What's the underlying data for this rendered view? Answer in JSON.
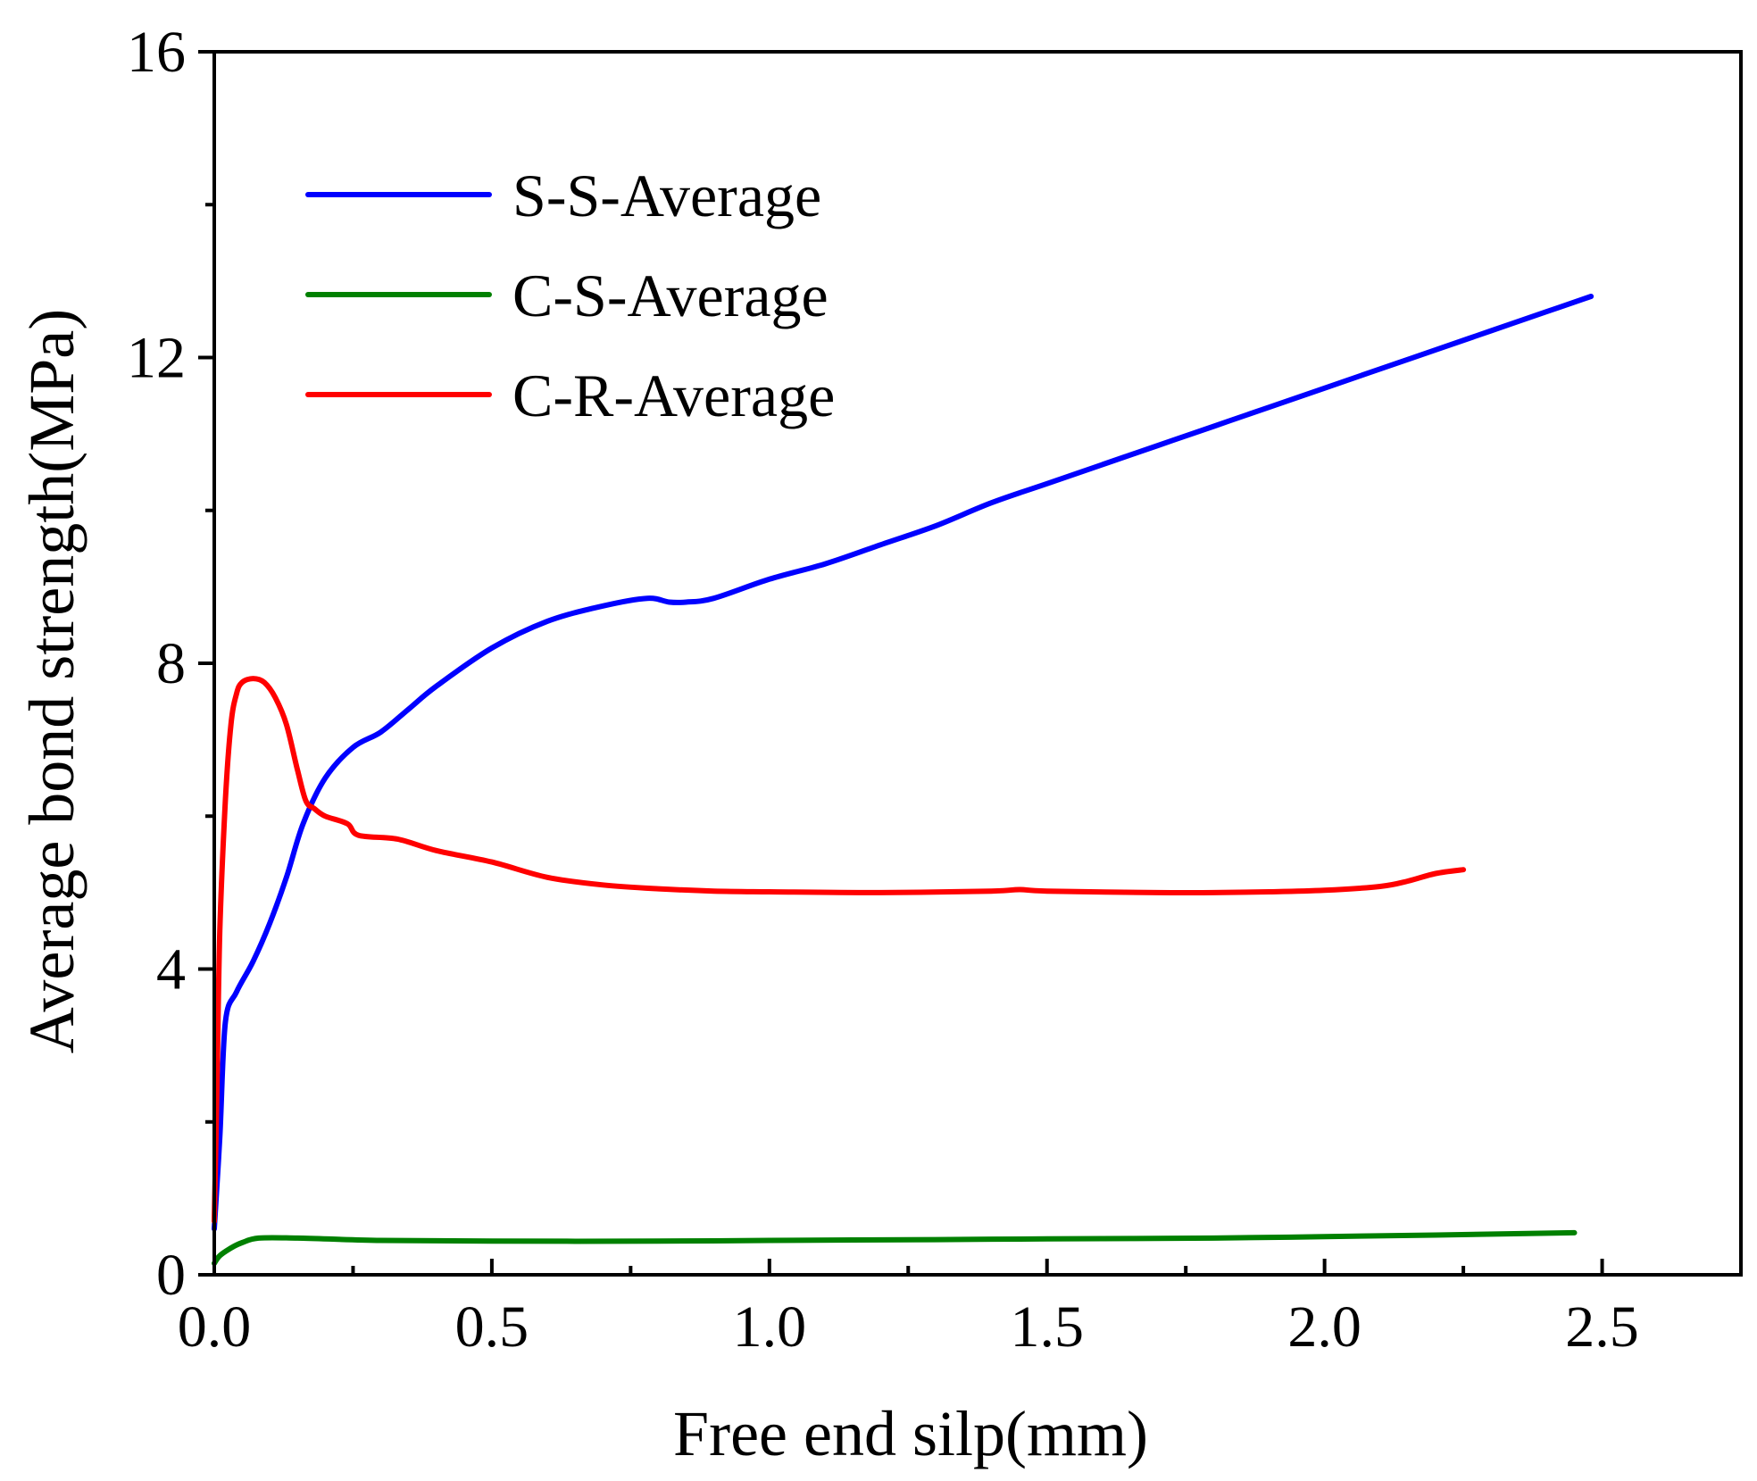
{
  "chart_data": {
    "type": "line",
    "title": "",
    "xlabel": "Free end silp(mm)",
    "ylabel": "Average bond strength(MPa)",
    "xlim": [
      0,
      2.75
    ],
    "ylim": [
      0,
      16
    ],
    "x_ticks": [
      0.0,
      0.5,
      1.0,
      1.5,
      2.0,
      2.5
    ],
    "x_tick_labels": [
      "0.0",
      "0.5",
      "1.0",
      "1.5",
      "2.0",
      "2.5"
    ],
    "y_ticks": [
      0,
      4,
      8,
      12,
      16
    ],
    "y_tick_labels": [
      "0",
      "4",
      "8",
      "12",
      "16"
    ],
    "grid": false,
    "legend_position": "top-left",
    "series": [
      {
        "name": "S-S-Average",
        "color": "#0000ff",
        "x": [
          0.0,
          0.01,
          0.02,
          0.04,
          0.07,
          0.1,
          0.13,
          0.16,
          0.2,
          0.25,
          0.3,
          0.35,
          0.4,
          0.5,
          0.6,
          0.7,
          0.78,
          0.82,
          0.85,
          0.9,
          1.0,
          1.1,
          1.2,
          1.3,
          1.4,
          1.5,
          1.6,
          1.7,
          1.8,
          1.9,
          2.0,
          2.1,
          2.2,
          2.3,
          2.4,
          2.48
        ],
        "values": [
          0.6,
          1.8,
          3.3,
          3.7,
          4.1,
          4.6,
          5.2,
          5.9,
          6.5,
          6.9,
          7.1,
          7.4,
          7.7,
          8.2,
          8.55,
          8.75,
          8.85,
          8.8,
          8.8,
          8.85,
          9.1,
          9.3,
          9.55,
          9.8,
          10.1,
          10.35,
          10.6,
          10.85,
          11.1,
          11.35,
          11.6,
          11.85,
          12.1,
          12.35,
          12.6,
          12.8
        ]
      },
      {
        "name": "C-S-Average",
        "color": "#008000",
        "x": [
          0.0,
          0.01,
          0.03,
          0.05,
          0.08,
          0.15,
          0.3,
          0.5,
          0.8,
          1.0,
          1.3,
          1.5,
          1.8,
          2.0,
          2.2,
          2.45
        ],
        "values": [
          0.15,
          0.25,
          0.35,
          0.42,
          0.48,
          0.48,
          0.45,
          0.44,
          0.44,
          0.45,
          0.46,
          0.47,
          0.48,
          0.5,
          0.52,
          0.55
        ]
      },
      {
        "name": "C-R-Average",
        "color": "#ff0000",
        "x": [
          0.0,
          0.005,
          0.01,
          0.02,
          0.03,
          0.04,
          0.05,
          0.07,
          0.09,
          0.11,
          0.13,
          0.15,
          0.165,
          0.18,
          0.2,
          0.24,
          0.26,
          0.33,
          0.4,
          0.5,
          0.6,
          0.7,
          0.8,
          0.9,
          1.0,
          1.2,
          1.4,
          1.45,
          1.5,
          1.7,
          1.8,
          1.9,
          2.0,
          2.1,
          2.15,
          2.2,
          2.25
        ],
        "values": [
          0.7,
          2.5,
          4.5,
          6.2,
          7.2,
          7.6,
          7.75,
          7.8,
          7.75,
          7.55,
          7.2,
          6.6,
          6.2,
          6.1,
          6.0,
          5.9,
          5.75,
          5.7,
          5.55,
          5.4,
          5.2,
          5.1,
          5.05,
          5.02,
          5.01,
          5.0,
          5.02,
          5.04,
          5.02,
          5.0,
          5.0,
          5.01,
          5.03,
          5.08,
          5.15,
          5.25,
          5.3
        ]
      }
    ]
  }
}
